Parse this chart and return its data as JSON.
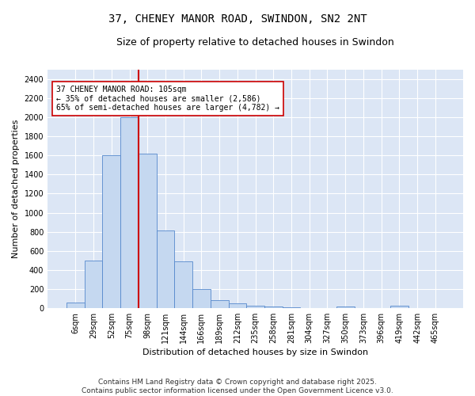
{
  "title": "37, CHENEY MANOR ROAD, SWINDON, SN2 2NT",
  "subtitle": "Size of property relative to detached houses in Swindon",
  "xlabel": "Distribution of detached houses by size in Swindon",
  "ylabel": "Number of detached properties",
  "bin_labels": [
    "6sqm",
    "29sqm",
    "52sqm",
    "75sqm",
    "98sqm",
    "121sqm",
    "144sqm",
    "166sqm",
    "189sqm",
    "212sqm",
    "235sqm",
    "258sqm",
    "281sqm",
    "304sqm",
    "327sqm",
    "350sqm",
    "373sqm",
    "396sqm",
    "419sqm",
    "442sqm",
    "465sqm"
  ],
  "bar_heights": [
    60,
    500,
    1600,
    2000,
    1620,
    810,
    490,
    195,
    85,
    45,
    25,
    12,
    8,
    0,
    0,
    12,
    0,
    0,
    20,
    0,
    0
  ],
  "bar_color": "#c5d8f0",
  "bar_edge_color": "#5588cc",
  "vline_x": 3.5,
  "vline_color": "#cc0000",
  "annotation_text": "37 CHENEY MANOR ROAD: 105sqm\n← 35% of detached houses are smaller (2,586)\n65% of semi-detached houses are larger (4,782) →",
  "annotation_box_color": "#ffffff",
  "annotation_box_edge": "#cc0000",
  "ylim": [
    0,
    2500
  ],
  "yticks": [
    0,
    200,
    400,
    600,
    800,
    1000,
    1200,
    1400,
    1600,
    1800,
    2000,
    2200,
    2400
  ],
  "bg_color": "#dce6f5",
  "grid_color": "#ffffff",
  "footer_text": "Contains HM Land Registry data © Crown copyright and database right 2025.\nContains public sector information licensed under the Open Government Licence v3.0.",
  "title_fontsize": 10,
  "subtitle_fontsize": 9,
  "axis_label_fontsize": 8,
  "tick_fontsize": 7,
  "annotation_fontsize": 7,
  "footer_fontsize": 6.5
}
